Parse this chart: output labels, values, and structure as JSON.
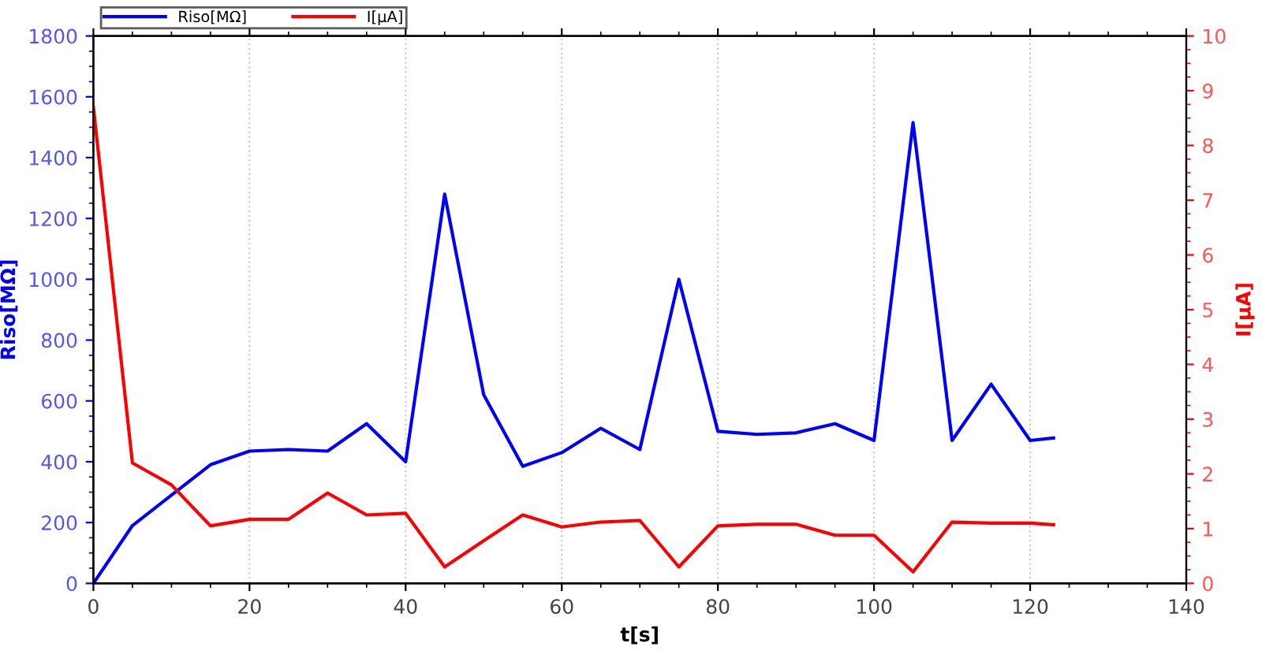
{
  "chart_data": {
    "type": "line",
    "xlabel": "t[s]",
    "ylabel": "Riso[MΩ]",
    "y2label": "I[µA]",
    "x": [
      0,
      5,
      10,
      15,
      20,
      25,
      30,
      35,
      40,
      45,
      50,
      55,
      60,
      65,
      70,
      75,
      80,
      85,
      90,
      95,
      100,
      105,
      110,
      115,
      120,
      123
    ],
    "series": [
      {
        "name": "Riso[MΩ]",
        "color": "#0000ff",
        "values": [
          0,
          190,
          290,
          390,
          435,
          440,
          435,
          525,
          400,
          1280,
          620,
          385,
          430,
          510,
          440,
          1000,
          500,
          490,
          495,
          525,
          470,
          1515,
          470,
          655,
          470,
          478
        ]
      },
      {
        "name": "I[µA]",
        "color": "#ff0000",
        "axis": "y2",
        "values": [
          8.7,
          2.2,
          1.8,
          1.05,
          1.17,
          1.17,
          1.65,
          1.25,
          1.28,
          0.3,
          0.78,
          1.25,
          1.03,
          1.12,
          1.15,
          0.3,
          1.05,
          1.08,
          1.08,
          0.88,
          0.88,
          0.21,
          1.12,
          1.1,
          1.1,
          1.07
        ]
      }
    ],
    "xlim": [
      0,
      140
    ],
    "xticks": [
      0,
      20,
      40,
      60,
      80,
      100,
      120,
      140
    ],
    "ylim": [
      0,
      1800
    ],
    "yticks": [
      0,
      200,
      400,
      600,
      800,
      1000,
      1200,
      1400,
      1600,
      1800
    ],
    "y2lim": [
      0,
      10
    ],
    "y2ticks": [
      0,
      1,
      2,
      3,
      4,
      5,
      6,
      7,
      8,
      9,
      10
    ],
    "grid": "x",
    "legend": "top left",
    "marker": "none",
    "line_style": "solid"
  }
}
